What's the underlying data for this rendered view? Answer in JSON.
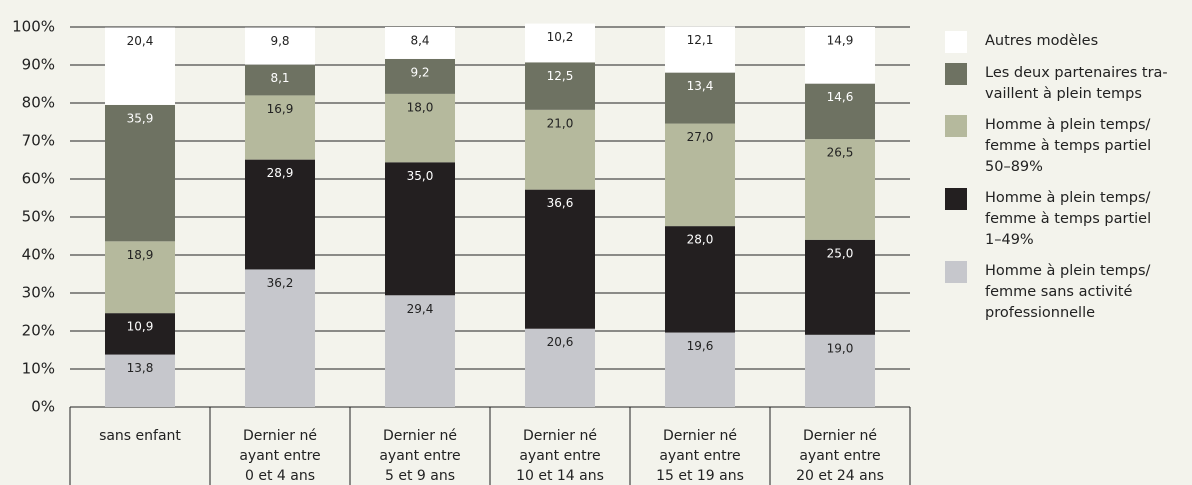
{
  "chart_data": {
    "type": "stacked-bar",
    "categories": [
      "sans enfant",
      "Dernier né\nayant entre\n0 et 4 ans",
      "Dernier né\nayant entre\n5 et 9 ans",
      "Dernier né\nayant entre\n10 et 14 ans",
      "Dernier né\nayant entre\n15 et 19 ans",
      "Dernier né\nayant entre\n20 et 24 ans"
    ],
    "series": [
      {
        "name": "Homme à plein temps/\nfemme sans activité\nprofessionnelle",
        "color": "#c6c7cc",
        "label_color": "#222222",
        "values": [
          13.8,
          36.2,
          29.4,
          20.6,
          19.6,
          19.0
        ],
        "value_labels": [
          "13,8",
          "36,2",
          "29,4",
          "20,6",
          "19,6",
          "19,0"
        ]
      },
      {
        "name": "Homme à plein temps/\nfemme à temps partiel\n1–49%",
        "color": "#231f20",
        "label_color": "#ffffff",
        "values": [
          10.9,
          28.9,
          35.0,
          36.6,
          28.0,
          25.0
        ],
        "value_labels": [
          "10,9",
          "28,9",
          "35,0",
          "36,6",
          "28,0",
          "25,0"
        ]
      },
      {
        "name": "Homme à plein temps/\nfemme à temps partiel\n50–89%",
        "color": "#b5b99d",
        "label_color": "#222222",
        "values": [
          18.9,
          16.9,
          18.0,
          21.0,
          27.0,
          26.5
        ],
        "value_labels": [
          "18,9",
          "16,9",
          "18,0",
          "21,0",
          "27,0",
          "26,5"
        ]
      },
      {
        "name": "Les deux partenaires tra-\nvaillent à plein temps",
        "color": "#6e7262",
        "label_color": "#ffffff",
        "values": [
          35.9,
          8.1,
          9.2,
          12.5,
          13.4,
          14.6
        ],
        "value_labels": [
          "35,9",
          "8,1",
          "9,2",
          "12,5",
          "13,4",
          "14,6"
        ]
      },
      {
        "name": "Autres modèles",
        "color": "#ffffff",
        "label_color": "#222222",
        "values": [
          20.4,
          9.8,
          8.4,
          10.2,
          12.1,
          14.9
        ],
        "value_labels": [
          "20,4",
          "9,8",
          "8,4",
          "10,2",
          "12,1",
          "14,9"
        ]
      }
    ],
    "ylim": [
      0,
      100
    ],
    "yticks": [
      {
        "value": 0,
        "label": "0%"
      },
      {
        "value": 10,
        "label": "10%"
      },
      {
        "value": 20,
        "label": "20%"
      },
      {
        "value": 30,
        "label": "30%"
      },
      {
        "value": 40,
        "label": "40%"
      },
      {
        "value": 50,
        "label": "50%"
      },
      {
        "value": 60,
        "label": "60%"
      },
      {
        "value": 70,
        "label": "70%"
      },
      {
        "value": 80,
        "label": "80%"
      },
      {
        "value": 90,
        "label": "90%"
      },
      {
        "value": 100,
        "label": "100%"
      }
    ],
    "grid": true,
    "legend": "right"
  }
}
